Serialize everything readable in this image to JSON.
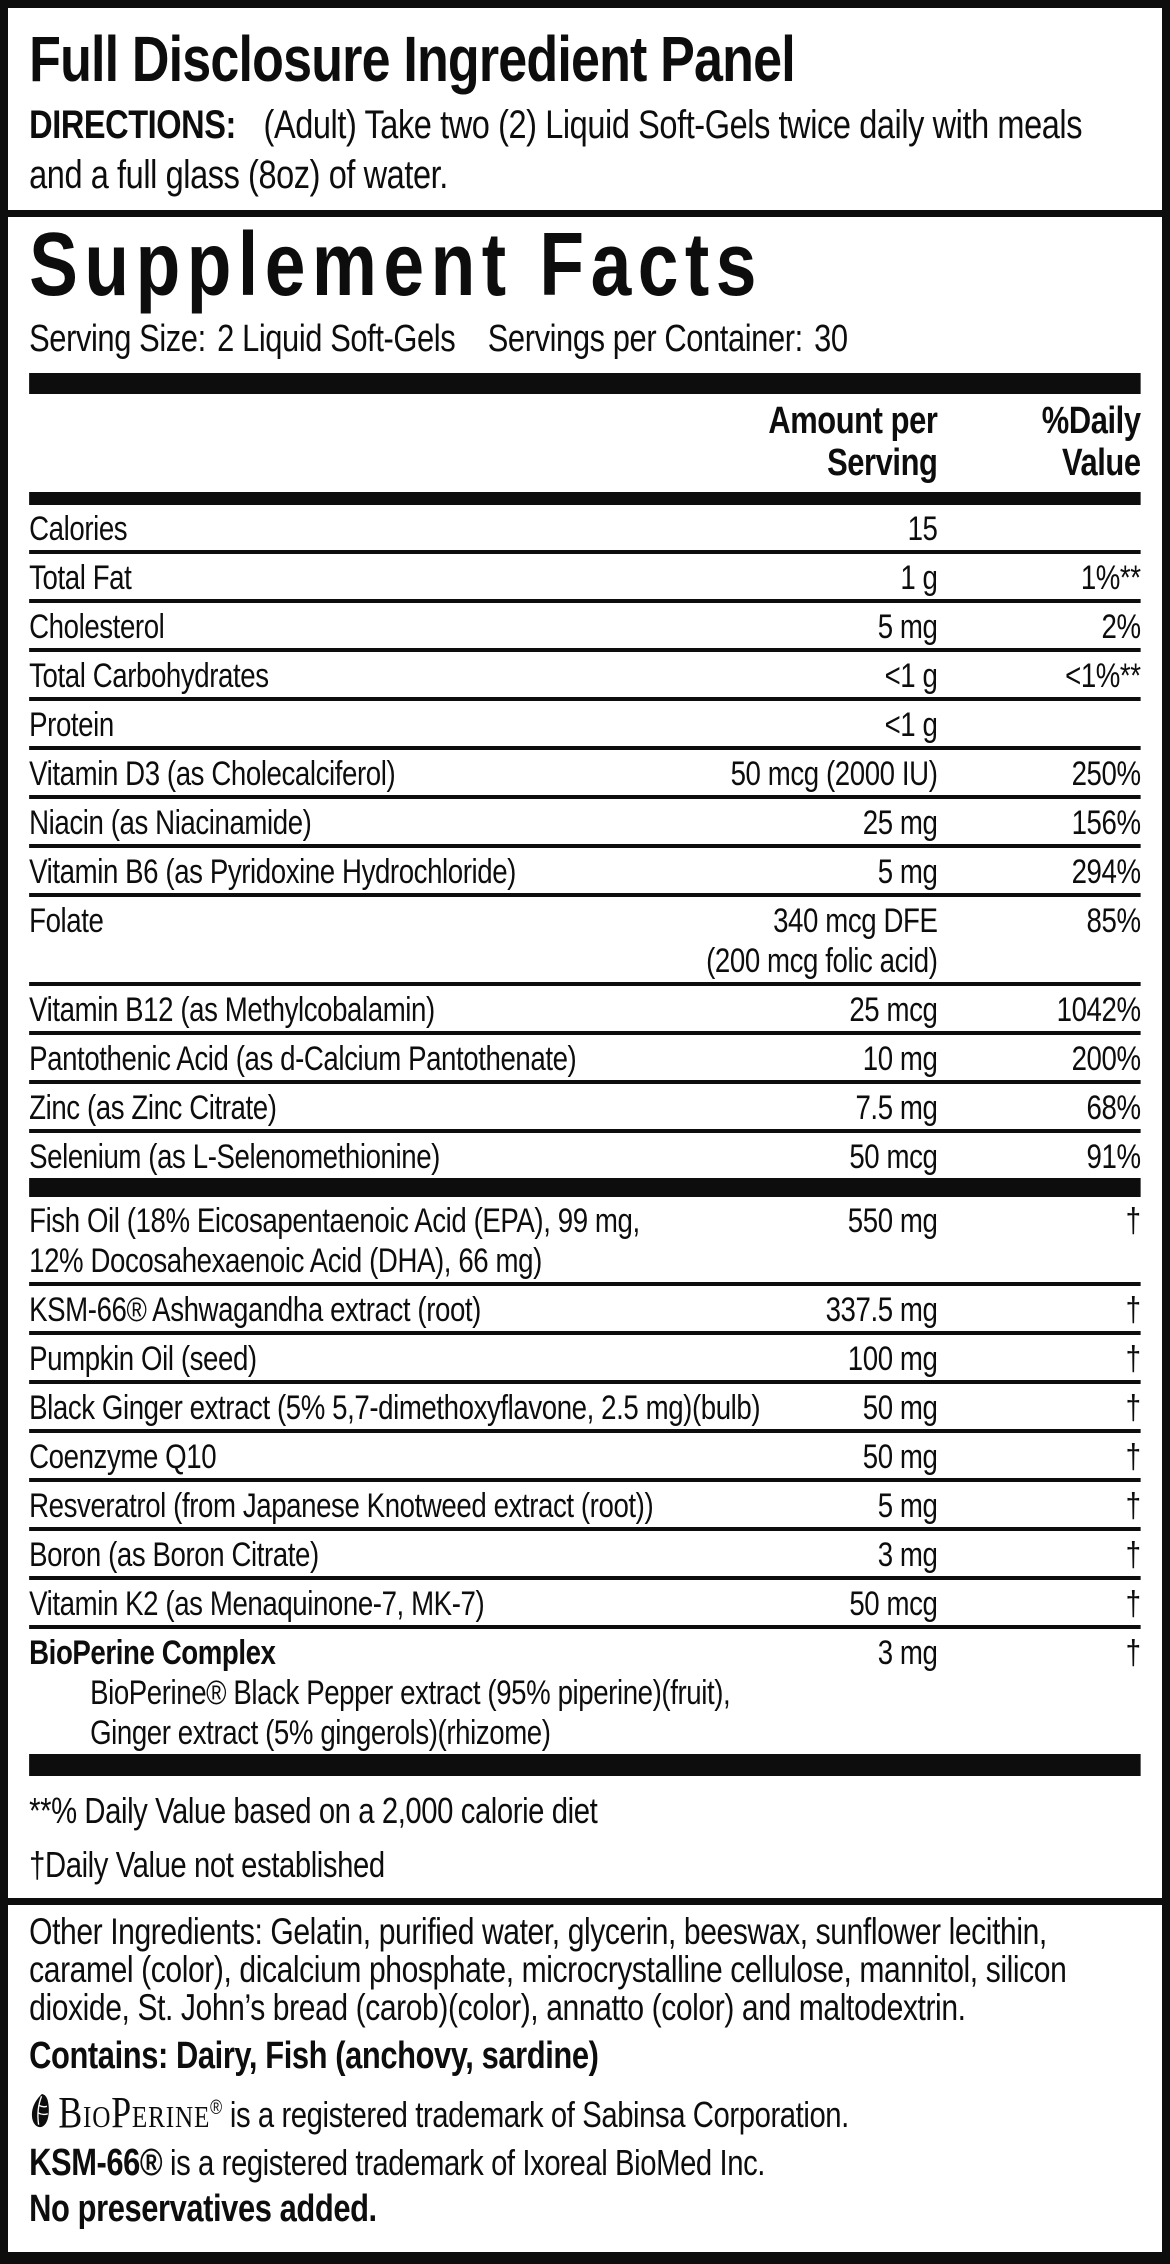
{
  "top_panel": {
    "title": "Full Disclosure Ingredient Panel",
    "directions_label": "DIRECTIONS:",
    "directions_text": "(Adult) Take two (2) Liquid Soft-Gels twice daily with meals and a full glass (8oz) of water."
  },
  "supplement_facts": {
    "title": "Supplement Facts",
    "serving_size_label": "Serving Size:",
    "serving_size_value": "2 Liquid Soft-Gels",
    "servings_per_container_label": "Servings per Container:",
    "servings_per_container_value": "30",
    "columns": {
      "amount_line1": "Amount per",
      "amount_line2": "Serving",
      "dv_line1": "%Daily",
      "dv_line2": "Value"
    },
    "nutrient_rows": [
      {
        "name": "Calories",
        "amount": "15",
        "dv": ""
      },
      {
        "name": "Total Fat",
        "amount": "1 g",
        "dv": "1%**"
      },
      {
        "name": "Cholesterol",
        "amount": "5 mg",
        "dv": "2%"
      },
      {
        "name": "Total Carbohydrates",
        "amount": "<1 g",
        "dv": "<1%**"
      },
      {
        "name": "Protein",
        "amount": "<1 g",
        "dv": ""
      },
      {
        "name": "Vitamin D3 (as Cholecalciferol)",
        "amount": "50 mcg (2000 IU)",
        "dv": "250%"
      },
      {
        "name": "Niacin (as Niacinamide)",
        "amount": "25 mg",
        "dv": "156%"
      },
      {
        "name": "Vitamin B6 (as Pyridoxine Hydrochloride)",
        "amount": "5 mg",
        "dv": "294%"
      },
      {
        "name": "Folate",
        "amount": "340 mcg DFE",
        "amount2": "(200 mcg folic acid)",
        "dv": "85%"
      },
      {
        "name": "Vitamin B12 (as Methylcobalamin)",
        "amount": "25 mcg",
        "dv": "1042%"
      },
      {
        "name": "Pantothenic Acid (as d-Calcium Pantothenate)",
        "amount": "10 mg",
        "dv": "200%"
      },
      {
        "name": "Zinc (as Zinc Citrate)",
        "amount": "7.5 mg",
        "dv": "68%"
      },
      {
        "name": "Selenium (as L-Selenomethionine)",
        "amount": "50 mcg",
        "dv": "91%"
      }
    ],
    "botanical_rows": [
      {
        "name": "Fish Oil (18% Eicosapentaenoic Acid (EPA), 99 mg,",
        "name2": "12% Docosahexaenoic Acid (DHA), 66 mg)",
        "amount": "550 mg",
        "dv": "†"
      },
      {
        "name": "KSM-66® Ashwagandha extract (root)",
        "amount": "337.5 mg",
        "dv": "†"
      },
      {
        "name": "Pumpkin Oil (seed)",
        "amount": "100 mg",
        "dv": "†"
      },
      {
        "name": "Black Ginger extract (5% 5,7-dimethoxyflavone, 2.5 mg)(bulb)",
        "amount": "50 mg",
        "dv": "†"
      },
      {
        "name": "Coenzyme Q10",
        "amount": "50 mg",
        "dv": "†"
      },
      {
        "name": "Resveratrol (from Japanese Knotweed extract (root))",
        "amount": "5 mg",
        "dv": "†"
      },
      {
        "name": "Boron (as Boron Citrate)",
        "amount": "3 mg",
        "dv": "†"
      },
      {
        "name": "Vitamin K2 (as Menaquinone-7, MK-7)",
        "amount": "50 mcg",
        "dv": "†"
      },
      {
        "name": "BioPerine Complex",
        "bold": true,
        "amount": "3 mg",
        "dv": "†",
        "sub": [
          "BioPerine® Black Pepper extract (95% piperine)(fruit),",
          "Ginger extract (5% gingerols)(rhizome)"
        ]
      }
    ],
    "footnotes": [
      "**% Daily Value based on a 2,000 calorie diet",
      "†Daily Value not established"
    ]
  },
  "bottom_panel": {
    "other_ingredients": "Other Ingredients: Gelatin, purified water, glycerin, beeswax, sunflower lecithin, caramel (color), dicalcium phosphate, microcrystalline cellulose, mannitol, silicon dioxide, St. John’s bread (carob)(color), annatto (color) and maltodextrin.",
    "contains": "Contains:  Dairy, Fish (anchovy, sardine)",
    "bioperine_brand": "BioPerine",
    "bioperine_reg": "®",
    "bioperine_tm_rest": "is a registered trademark of Sabinsa Corporation.",
    "ksm_brand": "KSM-66®",
    "ksm_tm_rest": "is a registered trademark of Ixoreal BioMed Inc.",
    "no_preservatives": "No preservatives added."
  },
  "icons": {
    "bioperine_logo": "leaf-swirl-icon"
  },
  "colors": {
    "ink": "#0d0d0d",
    "background": "#ffffff"
  }
}
